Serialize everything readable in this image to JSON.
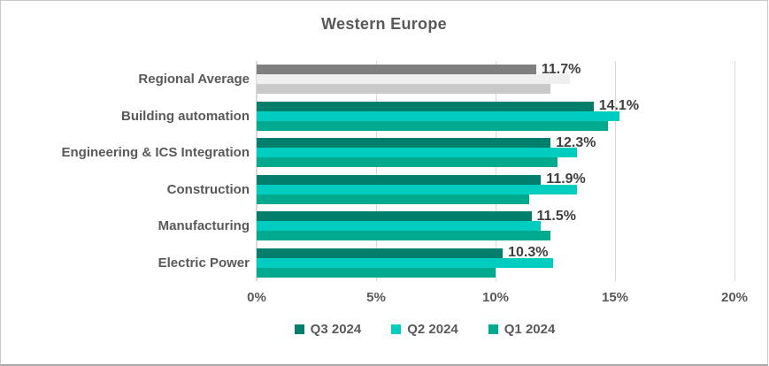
{
  "title": "Western Europe",
  "chart_data": {
    "type": "bar",
    "orientation": "horizontal",
    "title": "Western Europe",
    "categories": [
      "Regional Average",
      "Building automation",
      "Engineering & ICS Integration",
      "Construction",
      "Manufacturing",
      "Electric Power"
    ],
    "series": [
      {
        "name": "Q3 2024",
        "color": "#027e6c",
        "regional_color": "#7f7f7f",
        "values": [
          11.7,
          14.1,
          12.3,
          11.9,
          11.5,
          10.3
        ],
        "data_labels": [
          "11.7%",
          "14.1%",
          "12.3%",
          "11.9%",
          "11.5%",
          "10.3%"
        ]
      },
      {
        "name": "Q2 2024",
        "color": "#00ccc0",
        "regional_color": "#efefef",
        "values": [
          13.1,
          15.2,
          13.4,
          13.4,
          11.9,
          12.4
        ]
      },
      {
        "name": "Q1 2024",
        "color": "#00aa8f",
        "regional_color": "#c9c9c9",
        "values": [
          12.3,
          14.7,
          12.6,
          11.4,
          12.3,
          10.0
        ]
      }
    ],
    "xlim": [
      0,
      20
    ],
    "x_ticks": [
      "0%",
      "5%",
      "10%",
      "15%",
      "20%"
    ],
    "gridlines": true,
    "legend_position": "bottom",
    "legend": [
      "Q3 2024",
      "Q2 2024",
      "Q1 2024"
    ],
    "colors": {
      "axis_text": "#595959",
      "data_label": "#3f3f3f",
      "gridline": "#d9d9d9",
      "title_text": "#595959"
    }
  }
}
